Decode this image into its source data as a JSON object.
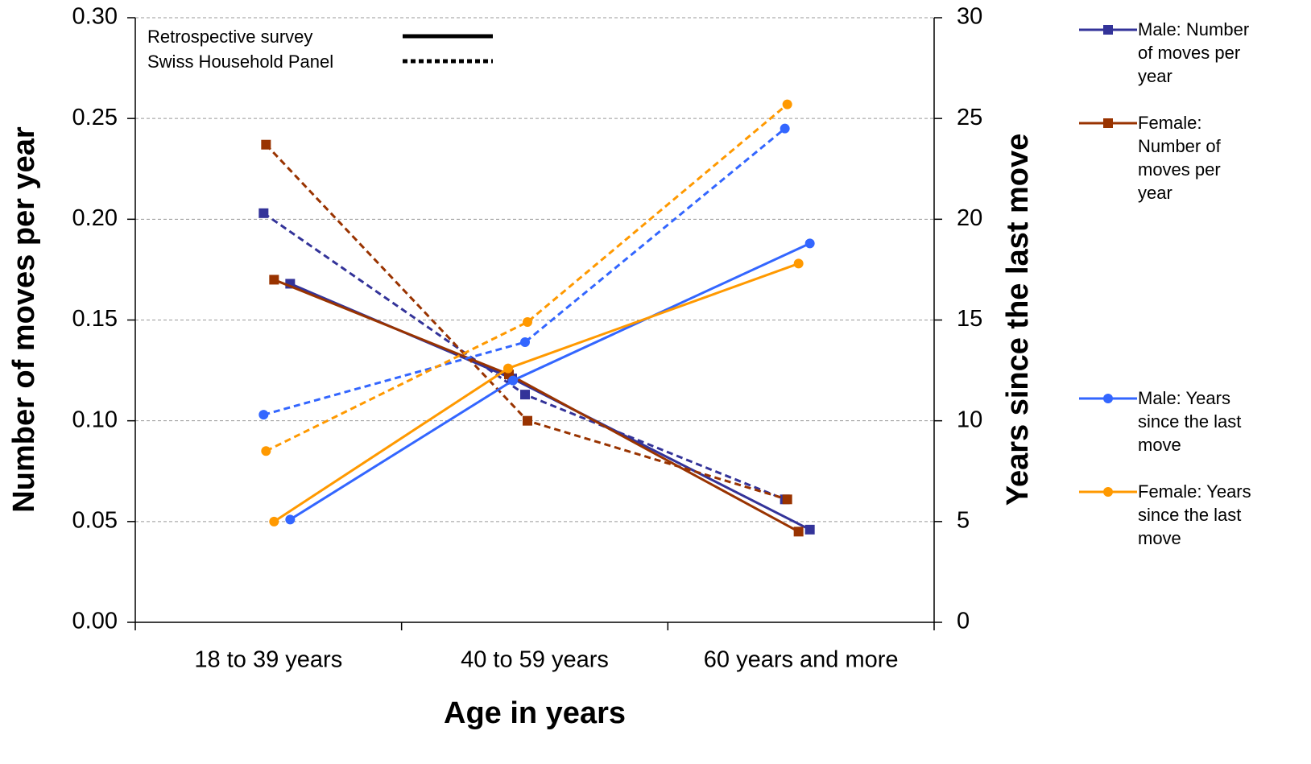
{
  "chart_data": {
    "type": "line",
    "x_label": "Age in years",
    "y_label": "Number of moves per year",
    "y2_label": "Years since the last move",
    "categories": [
      "18 to 39 years",
      "40 to 59 years",
      "60 years and more"
    ],
    "ylim": [
      0,
      0.3
    ],
    "yticks": [
      {
        "value": 0,
        "label": "0.00"
      },
      0.05,
      {
        "value": 0.1,
        "label": "0.10"
      },
      0.15,
      {
        "value": 0.2,
        "label": "0.20"
      },
      0.25,
      {
        "value": 0.3,
        "label": "0.30"
      }
    ],
    "y2lim": [
      0,
      30
    ],
    "y2ticks": [
      0,
      5,
      10,
      15,
      20,
      25,
      30
    ],
    "grid": true,
    "line_styles": [
      {
        "name": "Retrospective survey",
        "dash": "solid"
      },
      {
        "name": "Swiss Household Panel",
        "dash": "dashed"
      }
    ],
    "series": [
      {
        "name": "Male: Number of moves per year",
        "color": "#333399",
        "marker": "square",
        "axis": "y",
        "values": [
          0.168,
          0.121,
          0.046
        ],
        "panel_values": [
          0.203,
          0.113,
          0.061
        ]
      },
      {
        "name": "Female: Number of moves per year",
        "color": "#993300",
        "marker": "square",
        "axis": "y",
        "values": [
          0.17,
          0.123,
          0.045
        ],
        "panel_values": [
          0.237,
          0.1,
          0.061
        ]
      },
      {
        "name": "Male: Years since the last move",
        "color": "#3366FF",
        "marker": "circle",
        "axis": "y2",
        "values": [
          5.1,
          12.0,
          18.8
        ],
        "panel_values": [
          10.3,
          13.9,
          24.5
        ]
      },
      {
        "name": "Female: Years since the last move",
        "color": "#FF9900",
        "marker": "circle",
        "axis": "y2",
        "values": [
          5.0,
          12.6,
          17.8
        ],
        "panel_values": [
          8.5,
          14.9,
          25.7
        ]
      }
    ]
  }
}
